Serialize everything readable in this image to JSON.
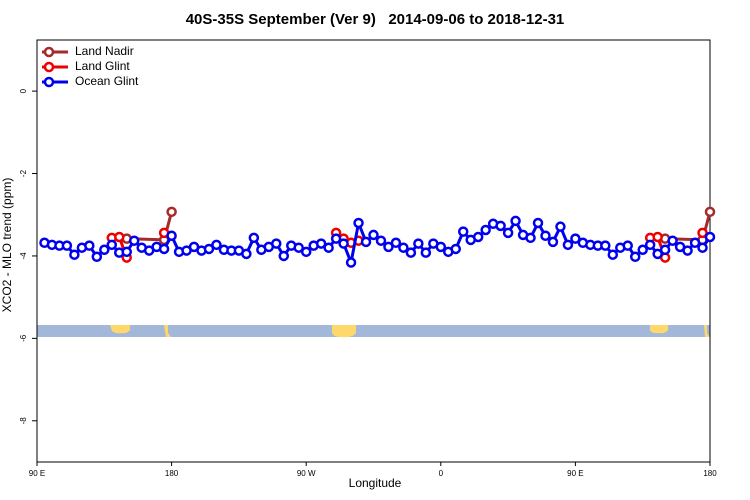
{
  "chart_data": {
    "type": "line",
    "title": "40S-35S September (Ver 9)   2014-09-06 to 2018-12-31",
    "x_label": "Longitude",
    "y_label": "XCO2 - MLO trend (ppm)",
    "xlim": [
      90,
      540
    ],
    "ylim": [
      -9.0,
      1.24
    ],
    "xticks": [
      {
        "value": 90,
        "label": "90 E"
      },
      {
        "value": 180,
        "label": "180"
      },
      {
        "value": 270,
        "label": "90 W"
      },
      {
        "value": 360,
        "label": "0"
      },
      {
        "value": 450,
        "label": "90 E"
      },
      {
        "value": 540,
        "label": "180"
      }
    ],
    "yticks": [
      -8,
      -6,
      -4,
      -2,
      0
    ],
    "legend": "top-left",
    "series": [
      {
        "name": "Land Nadir",
        "color": "#a52a2a",
        "x": [
          150,
          175,
          180,
          185,
          510,
          535,
          540
        ],
        "values": [
          -3.58,
          -3.61,
          -2.93,
          null,
          -3.58,
          -3.61,
          -2.93
        ]
      },
      {
        "name": "Land Glint",
        "color": "#ee0000",
        "x": [
          140,
          145,
          150,
          155,
          175,
          285,
          290,
          295,
          300,
          305,
          495,
          500,
          505,
          510,
          530,
          535
        ],
        "values": [
          -3.56,
          -3.54,
          -4.04,
          null,
          -3.44,
          null,
          -3.44,
          -3.58,
          -3.68,
          -3.63,
          null,
          -3.56,
          -3.54,
          -4.04,
          null,
          -3.44
        ]
      },
      {
        "name": "Ocean Glint",
        "color": "#0000ee",
        "x": [
          95,
          100,
          105,
          110,
          115,
          120,
          125,
          130,
          135,
          140,
          145,
          150,
          155,
          160,
          165,
          170,
          175,
          180,
          185,
          190,
          195,
          200,
          205,
          210,
          215,
          220,
          225,
          230,
          235,
          240,
          245,
          250,
          255,
          260,
          265,
          270,
          275,
          280,
          285,
          290,
          295,
          300,
          305,
          310,
          315,
          320,
          325,
          330,
          335,
          340,
          345,
          350,
          355,
          360,
          365,
          370,
          375,
          380,
          385,
          390,
          395,
          400,
          405,
          410,
          415,
          420,
          425,
          430,
          435,
          440,
          445,
          450,
          455,
          460,
          465,
          470,
          475,
          480,
          485,
          490,
          495,
          500,
          505,
          510,
          515,
          520,
          525,
          530,
          535,
          540
        ],
        "values": [
          -3.68,
          -3.73,
          -3.75,
          -3.75,
          -3.97,
          -3.8,
          -3.75,
          -4.02,
          -3.85,
          -3.73,
          -3.92,
          -3.9,
          -3.63,
          -3.8,
          -3.87,
          -3.78,
          -3.83,
          -3.51,
          -3.9,
          -3.87,
          -3.78,
          -3.87,
          -3.83,
          -3.73,
          -3.85,
          -3.87,
          -3.87,
          -3.95,
          -3.56,
          -3.85,
          -3.78,
          -3.7,
          -4.0,
          -3.75,
          -3.8,
          -3.9,
          -3.75,
          -3.7,
          -3.8,
          -3.58,
          -3.7,
          -4.16,
          -3.2,
          -3.66,
          -3.49,
          -3.63,
          -3.78,
          -3.68,
          -3.8,
          -3.92,
          -3.7,
          -3.92,
          -3.7,
          -3.78,
          -3.9,
          -3.83,
          -3.41,
          -3.61,
          -3.54,
          -3.37,
          -3.22,
          -3.27,
          -3.44,
          -3.15,
          -3.49,
          -3.56,
          -3.2,
          -3.51,
          -3.66,
          -3.29,
          -3.73,
          -3.58,
          -3.68,
          -3.73,
          -3.75,
          -3.75,
          -3.97,
          -3.8,
          -3.75,
          -4.02,
          -3.85,
          -3.73,
          -3.95,
          -3.85,
          -3.63,
          -3.78,
          -3.87,
          -3.68,
          -3.8,
          -3.54
        ]
      }
    ]
  }
}
